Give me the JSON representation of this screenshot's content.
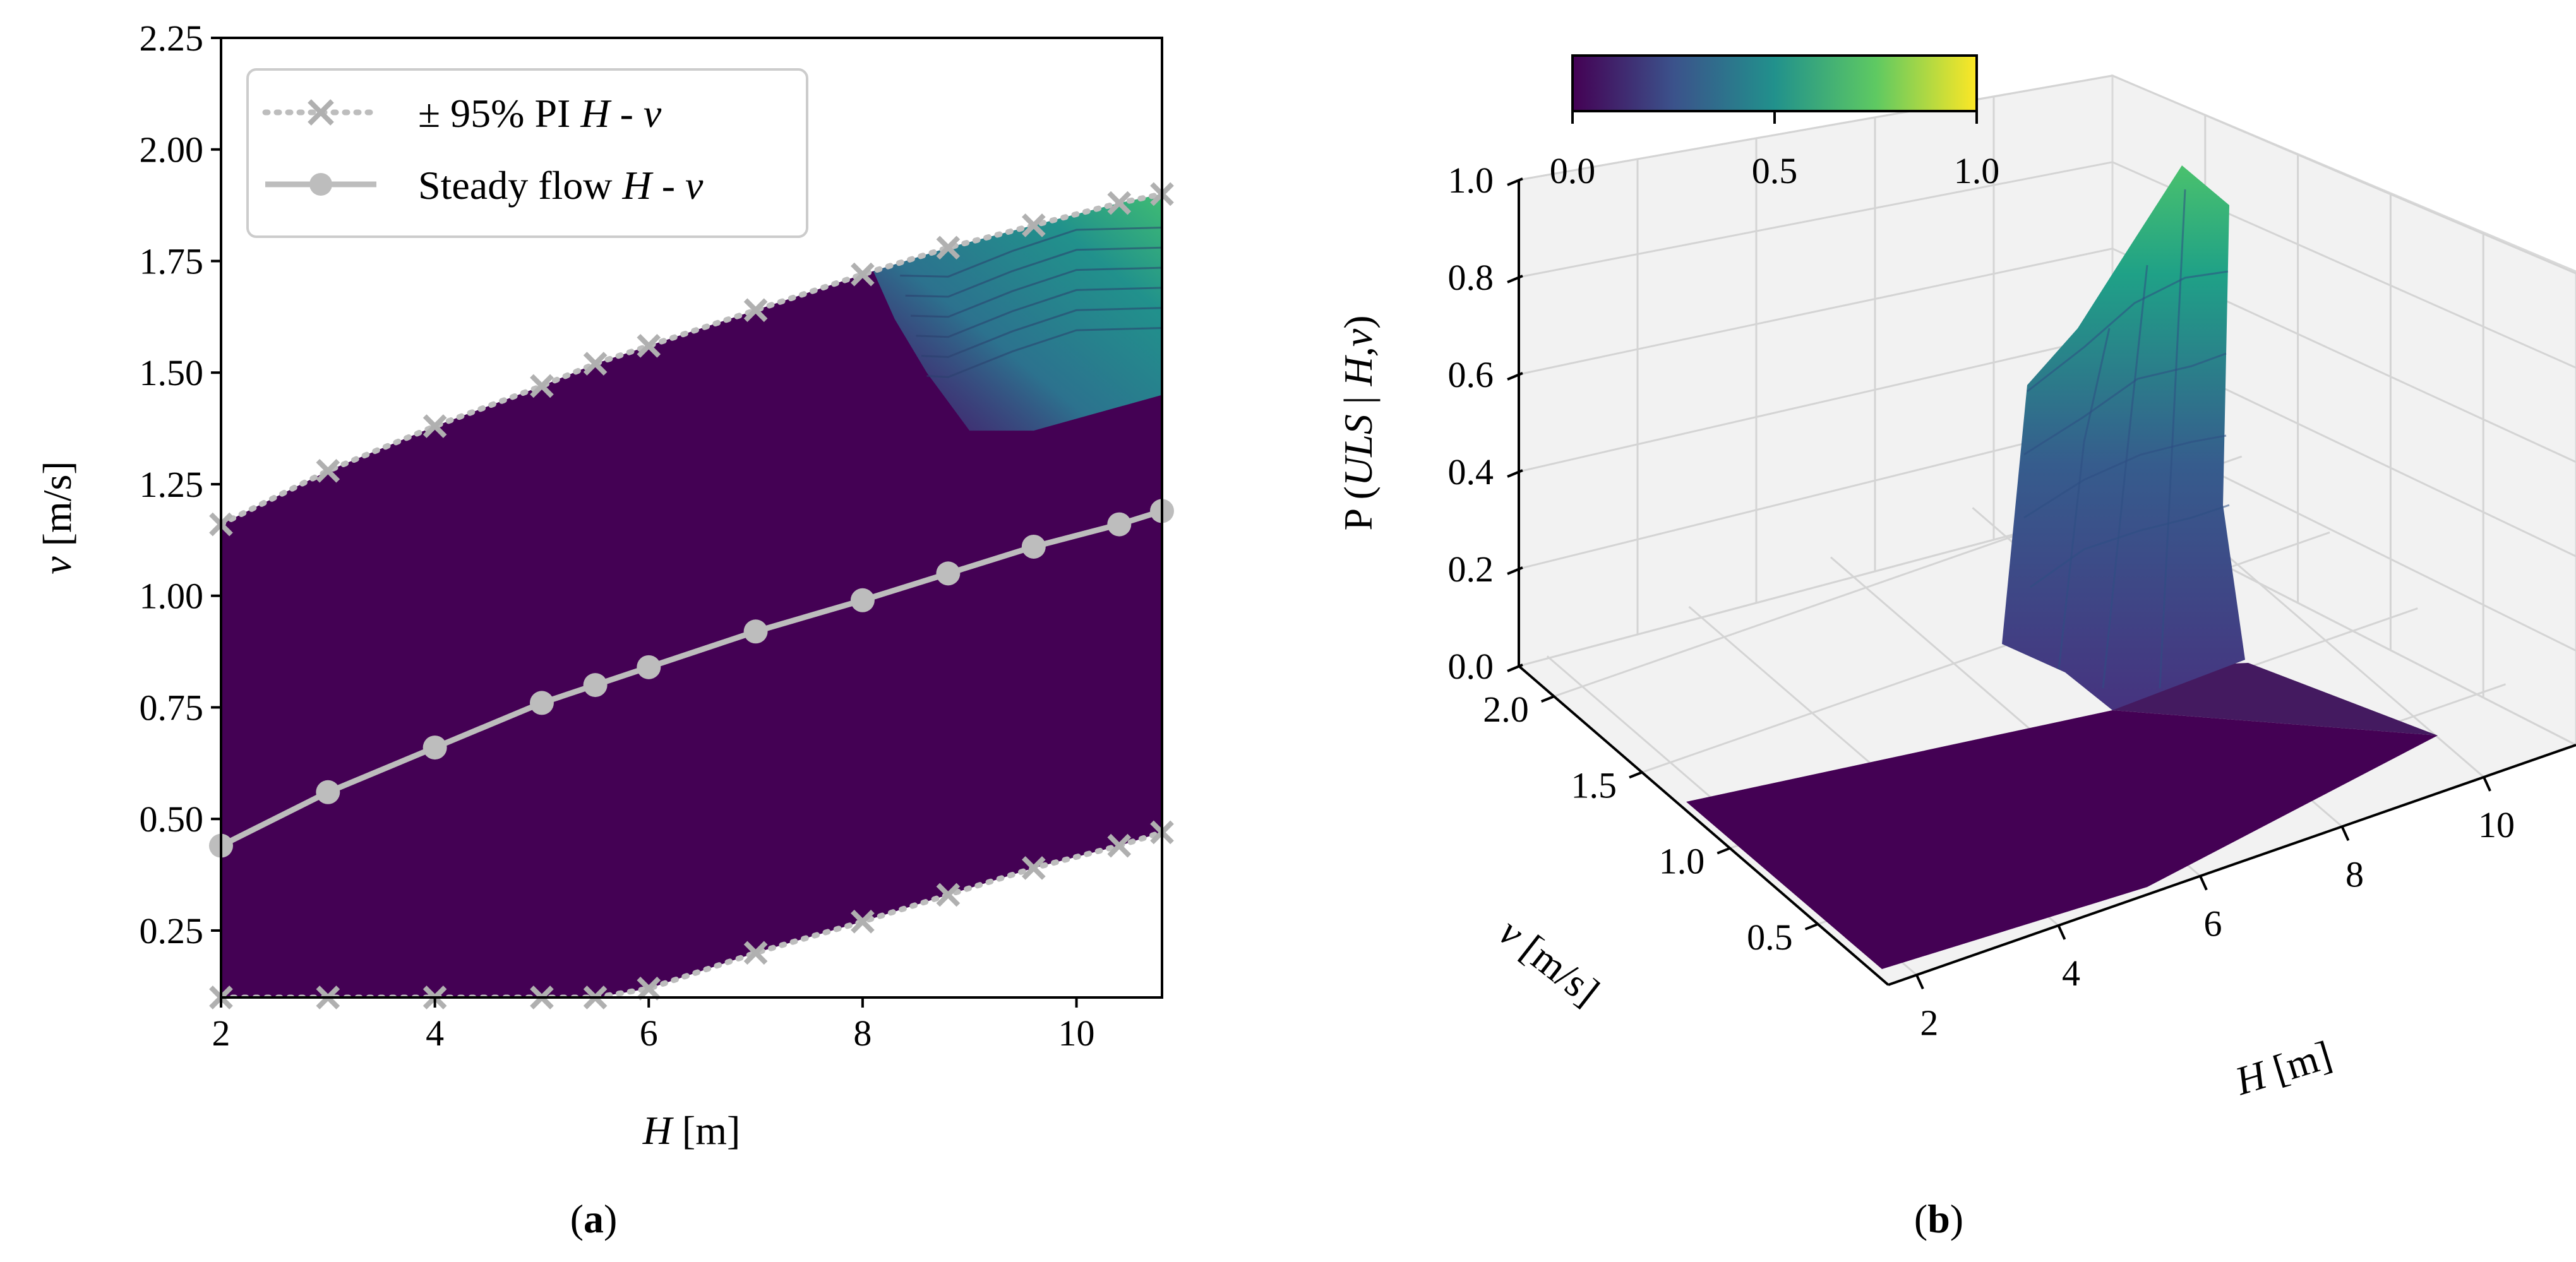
{
  "panel_a": {
    "tag_open": "(",
    "tag_letter": "a",
    "tag_close": ")",
    "xlabel_var": "H",
    "xlabel_unit": " [m]",
    "ylabel_var": "v",
    "ylabel_unit": " [m/s]",
    "legend": {
      "pi_prefix": "± 95% PI ",
      "pi_h": "H",
      "pi_dash": " - ",
      "pi_v": "v",
      "steady_prefix": "Steady flow ",
      "steady_h": "H",
      "steady_dash": " - ",
      "steady_v": "v"
    }
  },
  "panel_b": {
    "tag_open": "(",
    "tag_letter": "b",
    "tag_close": ")",
    "zlabel_main": "P (",
    "zlabel_uls": "ULS",
    "zlabel_bar": " | ",
    "zlabel_hv": "H,v",
    "zlabel_close": ")",
    "xlabel_var": "H",
    "xlabel_unit": " [m]",
    "ylabel_var": "v",
    "ylabel_unit": " [m/s]"
  },
  "colors": {
    "viridis_dark": "#440154",
    "field": "#440154",
    "curve": "#bdbdbd",
    "grid3d": "#d9d9d9",
    "pane": "#f2f2f2",
    "colorbar_stops": [
      "#440154",
      "#3b528b",
      "#21918c",
      "#5ec962",
      "#fde725"
    ]
  },
  "chart_data": [
    {
      "type": "contour",
      "title": "",
      "xlabel": "H [m]",
      "ylabel": "v [m/s]",
      "xlim": [
        2,
        10.8
      ],
      "ylim": [
        0.1,
        2.25
      ],
      "xticks": [
        "2",
        "4",
        "6",
        "8",
        "10"
      ],
      "yticks": [
        "0.25",
        "0.50",
        "0.75",
        "1.00",
        "1.25",
        "1.50",
        "1.75",
        "2.00",
        "2.25"
      ],
      "xtick_values": [
        2,
        4,
        6,
        8,
        10
      ],
      "ytick_values": [
        0.25,
        0.5,
        0.75,
        1.0,
        1.25,
        1.5,
        1.75,
        2.0,
        2.25
      ],
      "series": [
        {
          "name": "± 95% PI H - v (upper)",
          "style": "dotted with x markers",
          "x": [
            2,
            3,
            4,
            5,
            5.5,
            6,
            7,
            8,
            8.8,
            9.6,
            10.4,
            10.8
          ],
          "y": [
            1.16,
            1.28,
            1.38,
            1.47,
            1.52,
            1.56,
            1.64,
            1.72,
            1.78,
            1.83,
            1.88,
            1.9
          ]
        },
        {
          "name": "± 95% PI H - v (lower)",
          "style": "dotted with x markers",
          "x": [
            2,
            3,
            4,
            5,
            5.5,
            6,
            7,
            8,
            8.8,
            9.6,
            10.4,
            10.8
          ],
          "y": [
            0.1,
            0.1,
            0.1,
            0.1,
            0.1,
            0.12,
            0.2,
            0.27,
            0.33,
            0.39,
            0.44,
            0.47
          ]
        },
        {
          "name": "Steady flow H - v",
          "style": "solid with circle markers",
          "x": [
            2,
            3,
            4,
            5,
            5.5,
            6,
            7,
            8,
            8.8,
            9.6,
            10.4,
            10.8
          ],
          "y": [
            0.44,
            0.56,
            0.66,
            0.76,
            0.8,
            0.84,
            0.92,
            0.99,
            1.05,
            1.11,
            1.16,
            1.19
          ]
        }
      ],
      "high_probability_region": {
        "h_range": [
          8.1,
          10.8
        ],
        "v_range": [
          1.45,
          1.9
        ],
        "max_probability": 0.8
      }
    },
    {
      "type": "surface3d",
      "title": "",
      "xlabel": "H [m]",
      "ylabel": "v [m/s]",
      "zlabel": "P (ULS | H,v)",
      "xticks": [
        "2",
        "4",
        "6",
        "8",
        "10"
      ],
      "yticks": [
        "0.5",
        "1.0",
        "1.5",
        "2.0"
      ],
      "zticks": [
        "0.0",
        "0.2",
        "0.4",
        "0.6",
        "0.8",
        "1.0"
      ],
      "xtick_values": [
        2,
        4,
        6,
        8,
        10
      ],
      "ytick_values": [
        0.5,
        1.0,
        1.5,
        2.0
      ],
      "ztick_values": [
        0.0,
        0.2,
        0.4,
        0.6,
        0.8,
        1.0
      ],
      "zlim": [
        0,
        1
      ],
      "colorbar": {
        "ticks": [
          "0.0",
          "0.5",
          "1.0"
        ],
        "range": [
          0,
          1
        ],
        "cmap": "viridis"
      },
      "peak": {
        "H": 10.8,
        "v": 1.9,
        "P": 0.95
      },
      "baseline_P": 0.0
    }
  ]
}
